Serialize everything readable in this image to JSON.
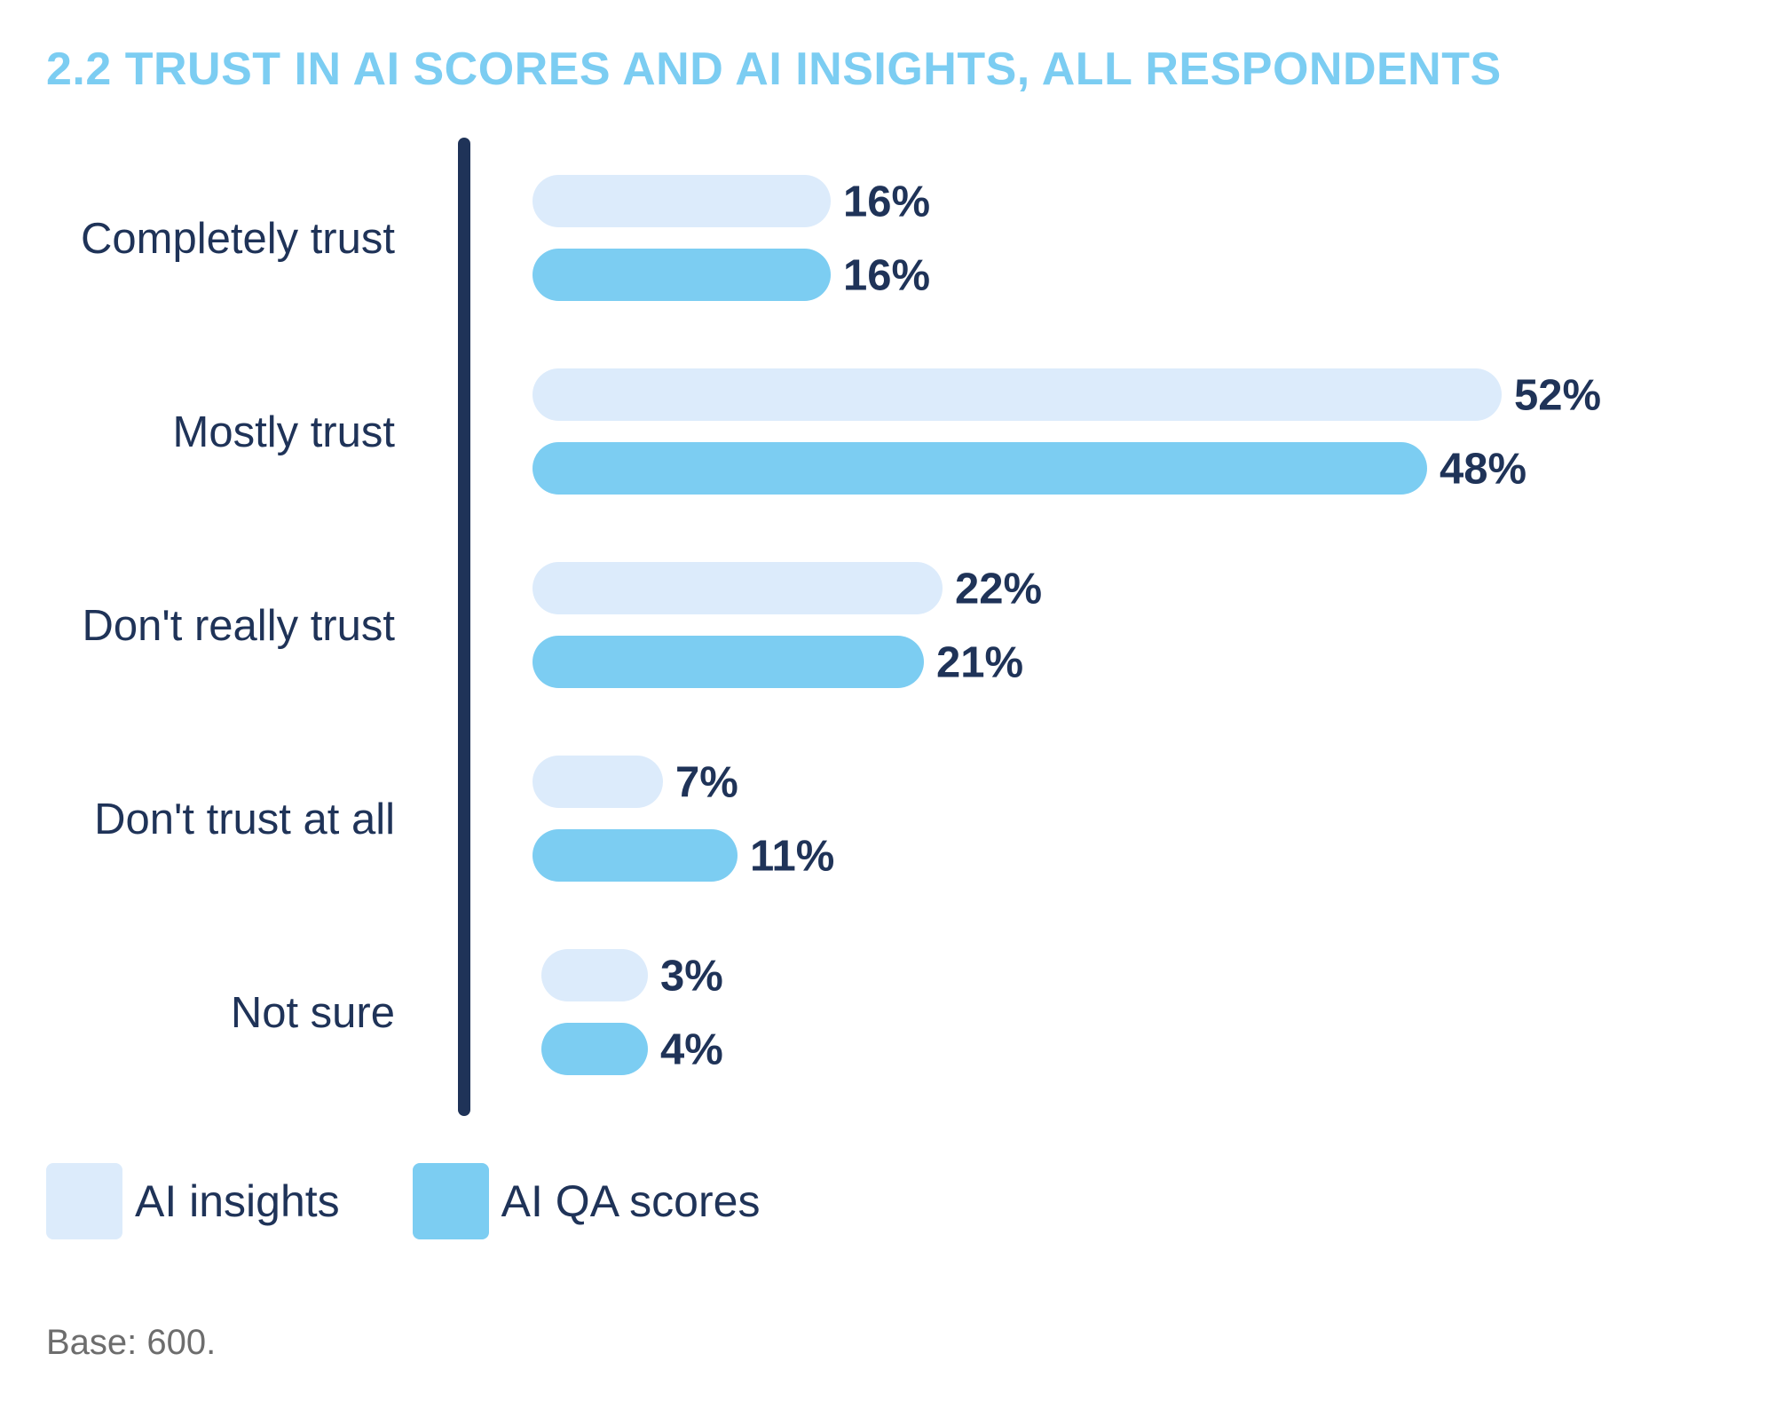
{
  "colors": {
    "title": "#7ccdf2",
    "text": "#1f3358",
    "axis": "#1f3358",
    "ai_insights": "#dcebfb",
    "ai_qa_scores": "#7ccdf2",
    "note": "#6d6d6d"
  },
  "chart_data": {
    "type": "bar",
    "orientation": "horizontal",
    "title": "2.2  TRUST IN AI SCORES AND AI INSIGHTS, ALL RESPONDENTS",
    "categories": [
      "Completely trust",
      "Mostly trust",
      "Don't really trust",
      "Don't trust at all",
      "Not sure"
    ],
    "series": [
      {
        "name": "AI insights",
        "values": [
          16,
          52,
          22,
          7,
          3
        ],
        "labels": [
          "16%",
          "52%",
          "22%",
          "7%",
          "3%"
        ]
      },
      {
        "name": "AI QA scores",
        "values": [
          16,
          48,
          21,
          11,
          4
        ],
        "labels": [
          "16%",
          "48%",
          "21%",
          "11%",
          "4%"
        ]
      }
    ],
    "unit": "%",
    "xlim": [
      0,
      60
    ],
    "grid": false,
    "legend": "bottom-left"
  },
  "note": "Base: 600."
}
